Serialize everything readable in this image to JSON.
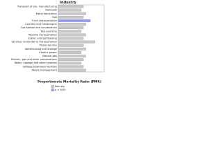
{
  "chart_data": {
    "type": "barh",
    "title": "Industry",
    "xlabel": "Proportionate Mortality Ratio (PMR)",
    "categories": [
      "Transport of ore, manufacturing",
      "Railroads",
      "Metal fabrication",
      "Rail",
      "Truck transportation",
      "Couriers and messengers",
      "Gas station and convenience",
      "Taxi and limo",
      "Pipeline transportation",
      "Scenic and sightseeing",
      "Services incidental to transportation",
      "Postal Service",
      "Warehousing and storage",
      "Electric power",
      "Natural gas",
      "Electric, gas and other combinations",
      "Water, sewage and other systems",
      "Sewage treatment facilities",
      "Waste management"
    ],
    "values": [
      1.1,
      1.0,
      1.2,
      1.1,
      1.4,
      1.2,
      1.1,
      1.0,
      1.2,
      1.1,
      1.6,
      1.1,
      1.2,
      1.0,
      1.2,
      1.1,
      1.0,
      1.1,
      1.2
    ],
    "colors": [
      "#c8c8c8",
      "#c8c8c8",
      "#c8c8c8",
      "#c8c8c8",
      "#9999ff",
      "#c8c8c8",
      "#c8c8c8",
      "#c8c8c8",
      "#c8c8c8",
      "#c8c8c8",
      "#c8c8c8",
      "#c8c8c8",
      "#c8c8c8",
      "#c8c8c8",
      "#c8c8c8",
      "#c8c8c8",
      "#c8c8c8",
      "#c8c8c8",
      "#c8c8c8"
    ],
    "xlim": [
      0,
      2
    ],
    "legend": [
      {
        "name": "Non-sig",
        "color": "#c8c8c8"
      },
      {
        "name": "p < 0.05",
        "color": "#9999ff"
      }
    ]
  }
}
